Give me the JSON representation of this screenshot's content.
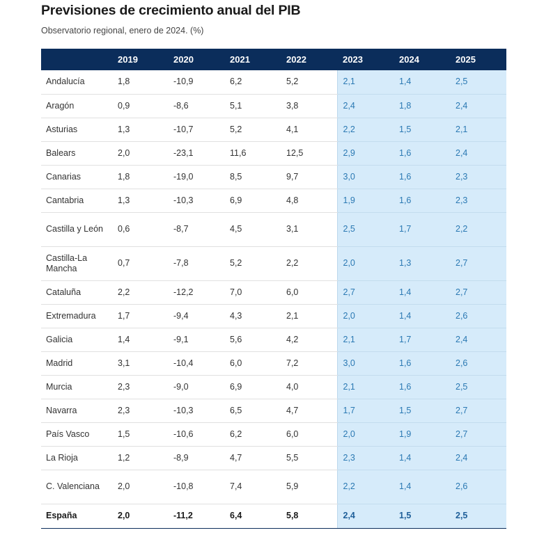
{
  "chart_data": {
    "type": "table",
    "title": "Previsiones de crecimiento anual del PIB",
    "subtitle": "Observatorio regional, enero de 2024. (%)",
    "columns": [
      "",
      "2019",
      "2020",
      "2021",
      "2022",
      "2023",
      "2024",
      "2025"
    ],
    "highlight_columns": [
      "2023",
      "2024",
      "2025"
    ],
    "header_color": "#0b2d5b",
    "highlight_color": "#d6ebfa",
    "highlight_text_color": "#2b79b3",
    "rows": [
      {
        "region": "Andalucía",
        "values": [
          "1,8",
          "-10,9",
          "6,2",
          "5,2",
          "2,1",
          "1,4",
          "2,5"
        ]
      },
      {
        "region": "Aragón",
        "values": [
          "0,9",
          "-8,6",
          "5,1",
          "3,8",
          "2,4",
          "1,8",
          "2,4"
        ]
      },
      {
        "region": "Asturias",
        "values": [
          "1,3",
          "-10,7",
          "5,2",
          "4,1",
          "2,2",
          "1,5",
          "2,1"
        ]
      },
      {
        "region": "Balears",
        "values": [
          "2,0",
          "-23,1",
          "11,6",
          "12,5",
          "2,9",
          "1,6",
          "2,4"
        ]
      },
      {
        "region": "Canarias",
        "values": [
          "1,8",
          "-19,0",
          "8,5",
          "9,7",
          "3,0",
          "1,6",
          "2,3"
        ]
      },
      {
        "region": "Cantabria",
        "values": [
          "1,3",
          "-10,3",
          "6,9",
          "4,8",
          "1,9",
          "1,6",
          "2,3"
        ]
      },
      {
        "region": "Castilla y León",
        "values": [
          "0,6",
          "-8,7",
          "4,5",
          "3,1",
          "2,5",
          "1,7",
          "2,2"
        ]
      },
      {
        "region": "Castilla-La Mancha",
        "values": [
          "0,7",
          "-7,8",
          "5,2",
          "2,2",
          "2,0",
          "1,3",
          "2,7"
        ]
      },
      {
        "region": "Cataluña",
        "values": [
          "2,2",
          "-12,2",
          "7,0",
          "6,0",
          "2,7",
          "1,4",
          "2,7"
        ]
      },
      {
        "region": "Extremadura",
        "values": [
          "1,7",
          "-9,4",
          "4,3",
          "2,1",
          "2,0",
          "1,4",
          "2,6"
        ]
      },
      {
        "region": "Galicia",
        "values": [
          "1,4",
          "-9,1",
          "5,6",
          "4,2",
          "2,1",
          "1,7",
          "2,4"
        ]
      },
      {
        "region": "Madrid",
        "values": [
          "3,1",
          "-10,4",
          "6,0",
          "7,2",
          "3,0",
          "1,6",
          "2,6"
        ]
      },
      {
        "region": "Murcia",
        "values": [
          "2,3",
          "-9,0",
          "6,9",
          "4,0",
          "2,1",
          "1,6",
          "2,5"
        ]
      },
      {
        "region": "Navarra",
        "values": [
          "2,3",
          "-10,3",
          "6,5",
          "4,7",
          "1,7",
          "1,5",
          "2,7"
        ]
      },
      {
        "region": "País Vasco",
        "values": [
          "1,5",
          "-10,6",
          "6,2",
          "6,0",
          "2,0",
          "1,9",
          "2,7"
        ]
      },
      {
        "region": "La Rioja",
        "values": [
          "1,2",
          "-8,9",
          "4,7",
          "5,5",
          "2,3",
          "1,4",
          "2,4"
        ]
      },
      {
        "region": "C. Valenciana",
        "values": [
          "2,0",
          "-10,8",
          "7,4",
          "5,9",
          "2,2",
          "1,4",
          "2,6"
        ]
      }
    ],
    "total": {
      "region": "España",
      "values": [
        "2,0",
        "-11,2",
        "6,4",
        "5,8",
        "2,4",
        "1,5",
        "2,5"
      ]
    }
  }
}
